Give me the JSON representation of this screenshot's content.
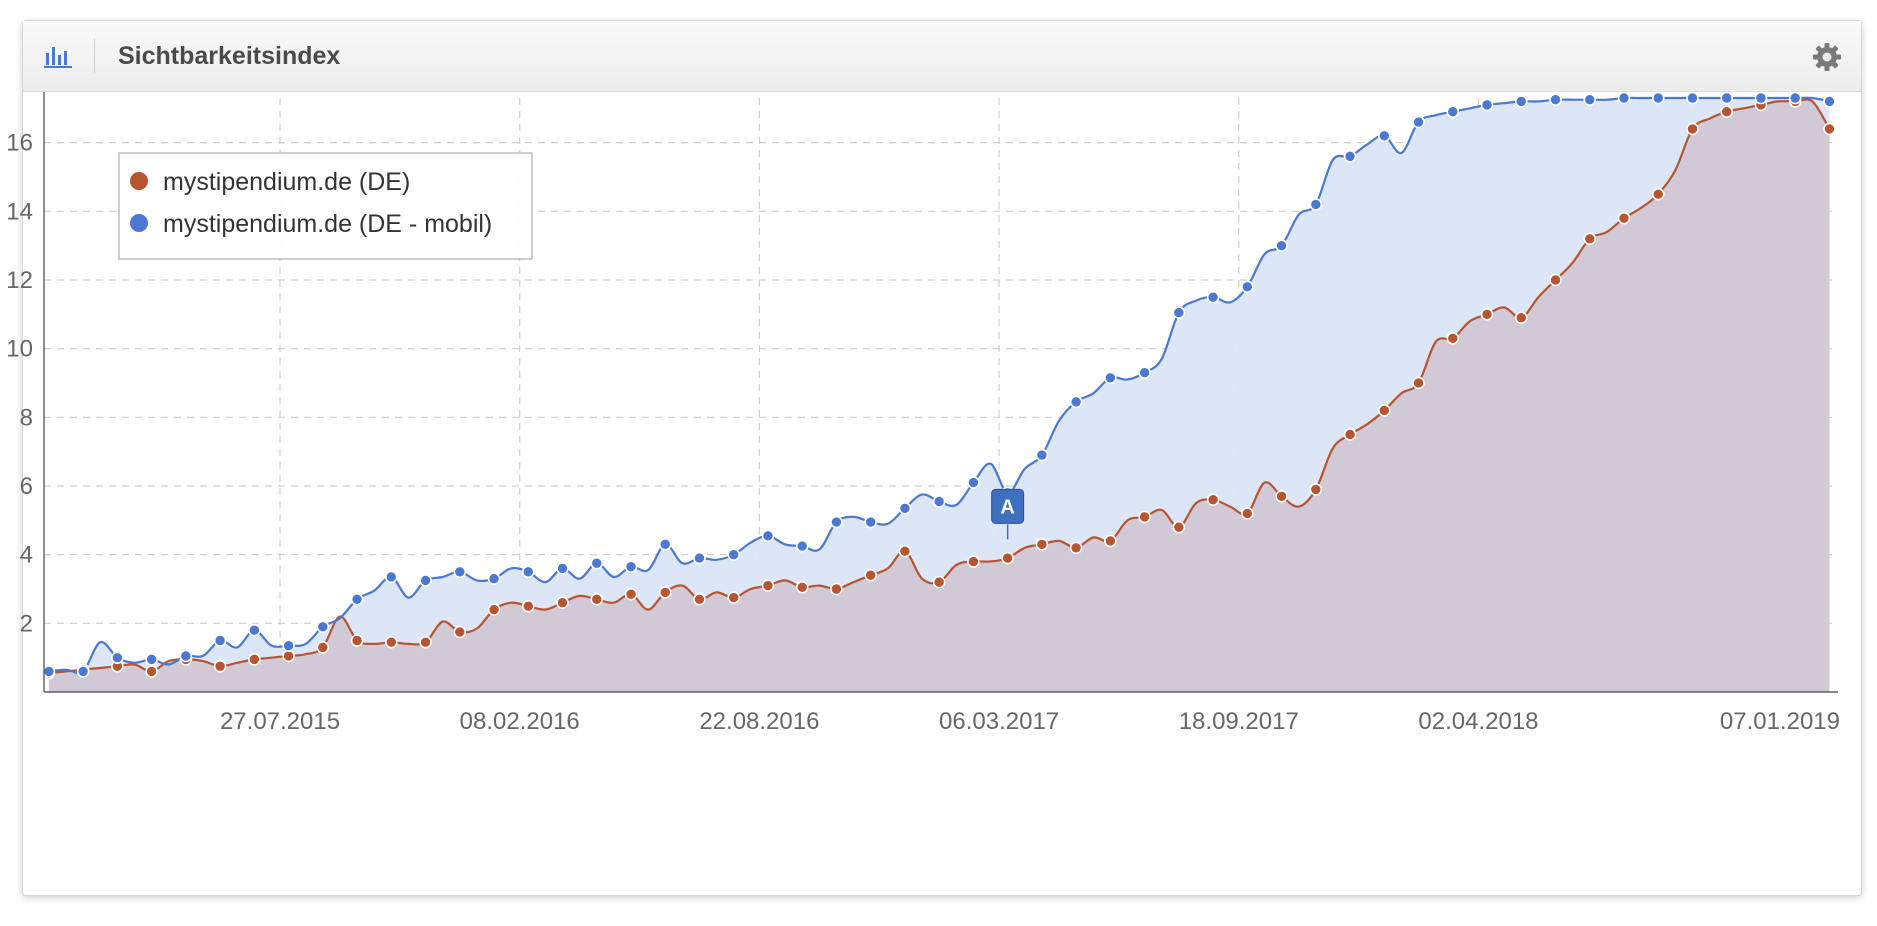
{
  "header": {
    "title": "Sichtbarkeitsindex",
    "chart_icon": "bar-chart-icon",
    "settings_icon": "gear-icon"
  },
  "colors": {
    "desktop": "#b8542f",
    "mobile": "#4a78d2",
    "area_desktop": "#cfc5d3",
    "area_mobile": "#dbe5f5",
    "flag": "#3f6fbf"
  },
  "chart_data": {
    "type": "area",
    "title": "Sichtbarkeitsindex",
    "xlabel": "",
    "ylabel": "",
    "ylim": [
      0,
      17.3
    ],
    "xlim": [
      "2015-01-15",
      "2019-01-21"
    ],
    "y_ticks": [
      2,
      4,
      6,
      8,
      10,
      12,
      14,
      16
    ],
    "x_ticks": [
      "27.07.2015",
      "08.02.2016",
      "22.08.2016",
      "06.03.2017",
      "18.09.2017",
      "02.04.2018",
      "07.01.2019"
    ],
    "grid": true,
    "legend_position": "top-left",
    "series": [
      {
        "name": "mystipendium.de (DE)",
        "x": [
          "2015-01-19",
          "2015-02-02",
          "2015-02-16",
          "2015-03-02",
          "2015-03-16",
          "2015-03-30",
          "2015-04-13",
          "2015-04-27",
          "2015-05-11",
          "2015-05-25",
          "2015-06-08",
          "2015-06-22",
          "2015-07-06",
          "2015-07-20",
          "2015-08-03",
          "2015-08-17",
          "2015-08-31",
          "2015-09-14",
          "2015-09-28",
          "2015-10-12",
          "2015-10-26",
          "2015-11-09",
          "2015-11-23",
          "2015-12-07",
          "2015-12-21",
          "2016-01-04",
          "2016-01-18",
          "2016-02-01",
          "2016-02-15",
          "2016-02-29",
          "2016-03-14",
          "2016-03-28",
          "2016-04-11",
          "2016-04-25",
          "2016-05-09",
          "2016-05-23",
          "2016-06-06",
          "2016-06-20",
          "2016-07-04",
          "2016-07-18",
          "2016-08-01",
          "2016-08-15",
          "2016-08-29",
          "2016-09-12",
          "2016-09-26",
          "2016-10-10",
          "2016-10-24",
          "2016-11-07",
          "2016-11-21",
          "2016-12-05",
          "2016-12-19",
          "2017-01-02",
          "2017-01-16",
          "2017-01-30",
          "2017-02-13",
          "2017-02-27",
          "2017-03-13",
          "2017-03-27",
          "2017-04-10",
          "2017-04-24",
          "2017-05-08",
          "2017-05-22",
          "2017-06-05",
          "2017-06-19",
          "2017-07-03",
          "2017-07-17",
          "2017-07-31",
          "2017-08-14",
          "2017-08-28",
          "2017-09-11",
          "2017-09-25",
          "2017-10-09",
          "2017-10-23",
          "2017-11-06",
          "2017-11-20",
          "2017-12-04",
          "2017-12-18",
          "2018-01-01",
          "2018-01-15",
          "2018-01-29",
          "2018-02-12",
          "2018-02-26",
          "2018-03-12",
          "2018-03-26",
          "2018-04-09",
          "2018-04-23",
          "2018-05-07",
          "2018-05-21",
          "2018-06-04",
          "2018-06-18",
          "2018-07-02",
          "2018-07-16",
          "2018-07-30",
          "2018-08-13",
          "2018-08-27",
          "2018-09-10",
          "2018-09-24",
          "2018-10-08",
          "2018-10-22",
          "2018-11-05",
          "2018-11-19",
          "2018-12-03",
          "2018-12-17",
          "2018-12-31",
          "2019-01-14"
        ],
        "values": [
          0.55,
          0.6,
          0.65,
          0.7,
          0.75,
          0.8,
          0.6,
          0.9,
          0.95,
          0.9,
          0.75,
          0.85,
          0.95,
          1.0,
          1.05,
          1.1,
          1.3,
          2.2,
          1.5,
          1.4,
          1.45,
          1.4,
          1.45,
          2.05,
          1.75,
          1.85,
          2.4,
          2.6,
          2.5,
          2.4,
          2.6,
          2.8,
          2.7,
          2.6,
          2.85,
          2.4,
          2.9,
          3.1,
          2.7,
          2.9,
          2.75,
          3.0,
          3.1,
          3.25,
          3.05,
          3.1,
          3.0,
          3.2,
          3.4,
          3.6,
          4.1,
          3.3,
          3.2,
          3.7,
          3.8,
          3.8,
          3.9,
          4.2,
          4.3,
          4.4,
          4.2,
          4.5,
          4.4,
          5.0,
          5.1,
          5.3,
          4.8,
          5.5,
          5.6,
          5.4,
          5.2,
          6.1,
          5.7,
          5.4,
          5.9,
          7.1,
          7.5,
          7.8,
          8.2,
          8.7,
          9.0,
          10.2,
          10.3,
          10.8,
          11.0,
          11.2,
          10.9,
          11.5,
          12.0,
          12.5,
          13.2,
          13.4,
          13.8,
          14.1,
          14.5,
          15.2,
          16.4,
          16.7,
          16.9,
          17.0,
          17.1,
          17.2,
          17.2,
          17.2,
          16.4
        ]
      },
      {
        "name": "mystipendium.de (DE - mobil)",
        "x": [
          "2015-01-19",
          "2015-02-02",
          "2015-02-16",
          "2015-03-02",
          "2015-03-16",
          "2015-03-30",
          "2015-04-13",
          "2015-04-27",
          "2015-05-11",
          "2015-05-25",
          "2015-06-08",
          "2015-06-22",
          "2015-07-06",
          "2015-07-20",
          "2015-08-03",
          "2015-08-17",
          "2015-08-31",
          "2015-09-14",
          "2015-09-28",
          "2015-10-12",
          "2015-10-26",
          "2015-11-09",
          "2015-11-23",
          "2015-12-07",
          "2015-12-21",
          "2016-01-04",
          "2016-01-18",
          "2016-02-01",
          "2016-02-15",
          "2016-02-29",
          "2016-03-14",
          "2016-03-28",
          "2016-04-11",
          "2016-04-25",
          "2016-05-09",
          "2016-05-23",
          "2016-06-06",
          "2016-06-20",
          "2016-07-04",
          "2016-07-18",
          "2016-08-01",
          "2016-08-15",
          "2016-08-29",
          "2016-09-12",
          "2016-09-26",
          "2016-10-10",
          "2016-10-24",
          "2016-11-07",
          "2016-11-21",
          "2016-12-05",
          "2016-12-19",
          "2017-01-02",
          "2017-01-16",
          "2017-01-30",
          "2017-02-13",
          "2017-02-27",
          "2017-03-13",
          "2017-03-27",
          "2017-04-10",
          "2017-04-24",
          "2017-05-08",
          "2017-05-22",
          "2017-06-05",
          "2017-06-19",
          "2017-07-03",
          "2017-07-17",
          "2017-07-31",
          "2017-08-14",
          "2017-08-28",
          "2017-09-11",
          "2017-09-25",
          "2017-10-09",
          "2017-10-23",
          "2017-11-06",
          "2017-11-20",
          "2017-12-04",
          "2017-12-18",
          "2018-01-01",
          "2018-01-15",
          "2018-01-29",
          "2018-02-12",
          "2018-02-26",
          "2018-03-12",
          "2018-03-26",
          "2018-04-09",
          "2018-04-23",
          "2018-05-07",
          "2018-05-21",
          "2018-06-04",
          "2018-06-18",
          "2018-07-02",
          "2018-07-16",
          "2018-07-30",
          "2018-08-13",
          "2018-08-27",
          "2018-09-10",
          "2018-09-24",
          "2018-10-08",
          "2018-10-22",
          "2018-11-05",
          "2018-11-19",
          "2018-12-03",
          "2018-12-17",
          "2018-12-31",
          "2019-01-14"
        ],
        "values": [
          0.6,
          0.65,
          0.6,
          1.45,
          1.0,
          0.85,
          0.95,
          0.8,
          1.05,
          1.05,
          1.5,
          1.3,
          1.8,
          1.35,
          1.35,
          1.4,
          1.9,
          2.15,
          2.7,
          2.95,
          3.35,
          2.75,
          3.25,
          3.35,
          3.5,
          3.25,
          3.3,
          3.6,
          3.5,
          3.2,
          3.6,
          3.3,
          3.75,
          3.35,
          3.65,
          3.55,
          4.3,
          3.75,
          3.9,
          3.85,
          4.0,
          4.35,
          4.55,
          4.3,
          4.25,
          4.15,
          4.95,
          5.1,
          4.95,
          4.9,
          5.35,
          5.75,
          5.55,
          5.45,
          6.1,
          6.65,
          5.8,
          6.5,
          6.9,
          7.9,
          8.45,
          8.7,
          9.15,
          9.1,
          9.3,
          9.7,
          11.05,
          11.4,
          11.5,
          11.35,
          11.8,
          12.75,
          13.0,
          13.9,
          14.2,
          15.5,
          15.6,
          15.95,
          16.2,
          15.7,
          16.6,
          16.8,
          16.9,
          17.0,
          17.1,
          17.15,
          17.2,
          17.2,
          17.25,
          17.25,
          17.25,
          17.25,
          17.3,
          17.3,
          17.3,
          17.3,
          17.3,
          17.3,
          17.3,
          17.3,
          17.3,
          17.3,
          17.3,
          17.3,
          17.2
        ]
      }
    ],
    "annotations": [
      {
        "label": "A",
        "x": "2017-03-13",
        "y": 4.3,
        "series": "mystipendium.de (DE - mobil)"
      }
    ]
  }
}
